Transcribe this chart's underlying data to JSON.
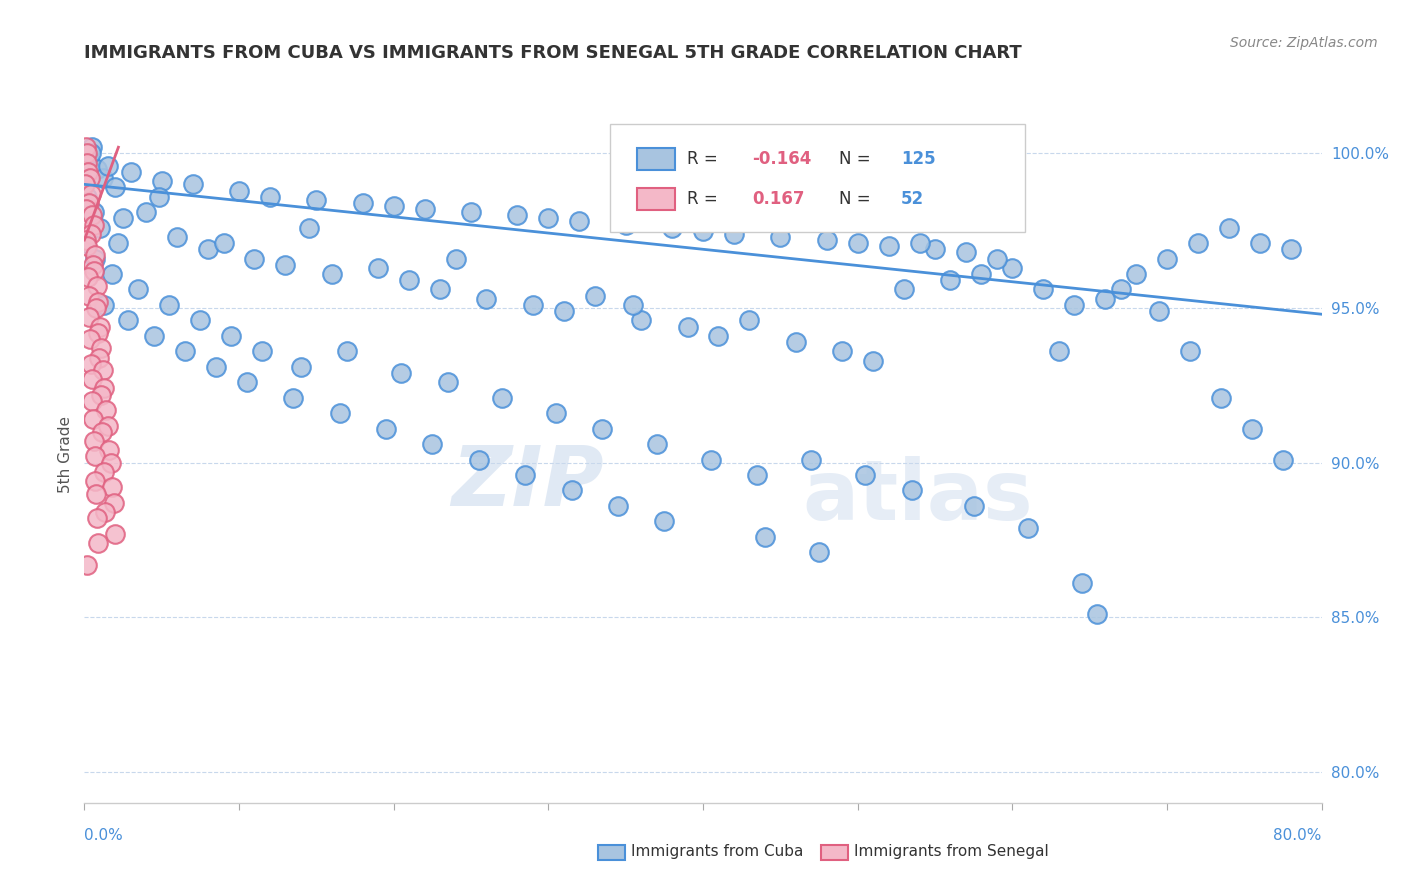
{
  "title": "IMMIGRANTS FROM CUBA VS IMMIGRANTS FROM SENEGAL 5TH GRADE CORRELATION CHART",
  "source_text": "Source: ZipAtlas.com",
  "ylabel": "5th Grade",
  "xlim": [
    0.0,
    80.0
  ],
  "ylim": [
    79.0,
    101.5
  ],
  "watermark_zip": "ZIP",
  "watermark_atlas": "atlas",
  "legend_cuba_r": "-0.164",
  "legend_cuba_n": "125",
  "legend_senegal_r": "0.167",
  "legend_senegal_n": "52",
  "blue_face_color": "#a8c4e0",
  "pink_face_color": "#f4b8c8",
  "blue_edge_color": "#4a90d9",
  "pink_edge_color": "#e06080",
  "blue_line_color": "#4a90d9",
  "pink_line_color": "#e06080",
  "axis_label_color": "#4a90d9",
  "legend_r_color": "#e06080",
  "legend_n_color": "#4a90d9",
  "grid_color": "#c8d8ec",
  "blue_trend": [
    0.0,
    80.0,
    99.0,
    94.8
  ],
  "pink_trend": [
    0.0,
    2.2,
    97.2,
    100.2
  ],
  "blue_scatter": [
    [
      0.5,
      100.2
    ],
    [
      0.3,
      99.8
    ],
    [
      0.8,
      99.5
    ],
    [
      1.2,
      99.2
    ],
    [
      2.0,
      98.9
    ],
    [
      0.4,
      100.0
    ],
    [
      1.5,
      99.6
    ],
    [
      3.0,
      99.4
    ],
    [
      5.0,
      99.1
    ],
    [
      7.0,
      99.0
    ],
    [
      10.0,
      98.8
    ],
    [
      12.0,
      98.6
    ],
    [
      15.0,
      98.5
    ],
    [
      18.0,
      98.4
    ],
    [
      20.0,
      98.3
    ],
    [
      22.0,
      98.2
    ],
    [
      25.0,
      98.1
    ],
    [
      28.0,
      98.0
    ],
    [
      30.0,
      97.9
    ],
    [
      32.0,
      97.8
    ],
    [
      35.0,
      97.7
    ],
    [
      38.0,
      97.6
    ],
    [
      40.0,
      97.5
    ],
    [
      42.0,
      97.4
    ],
    [
      45.0,
      97.3
    ],
    [
      48.0,
      97.2
    ],
    [
      50.0,
      97.1
    ],
    [
      52.0,
      97.0
    ],
    [
      55.0,
      96.9
    ],
    [
      57.0,
      96.8
    ],
    [
      0.2,
      98.6
    ],
    [
      0.6,
      98.1
    ],
    [
      1.0,
      97.6
    ],
    [
      2.5,
      97.9
    ],
    [
      4.0,
      98.1
    ],
    [
      6.0,
      97.3
    ],
    [
      8.0,
      96.9
    ],
    [
      9.0,
      97.1
    ],
    [
      11.0,
      96.6
    ],
    [
      13.0,
      96.4
    ],
    [
      16.0,
      96.1
    ],
    [
      19.0,
      96.3
    ],
    [
      21.0,
      95.9
    ],
    [
      23.0,
      95.6
    ],
    [
      26.0,
      95.3
    ],
    [
      29.0,
      95.1
    ],
    [
      31.0,
      94.9
    ],
    [
      33.0,
      95.4
    ],
    [
      36.0,
      94.6
    ],
    [
      39.0,
      94.4
    ],
    [
      41.0,
      94.1
    ],
    [
      43.0,
      94.6
    ],
    [
      46.0,
      93.9
    ],
    [
      49.0,
      93.6
    ],
    [
      51.0,
      93.3
    ],
    [
      53.0,
      95.6
    ],
    [
      56.0,
      95.9
    ],
    [
      58.0,
      96.1
    ],
    [
      60.0,
      96.3
    ],
    [
      62.0,
      95.6
    ],
    [
      64.0,
      95.1
    ],
    [
      66.0,
      95.3
    ],
    [
      68.0,
      96.1
    ],
    [
      70.0,
      96.6
    ],
    [
      72.0,
      97.1
    ],
    [
      74.0,
      97.6
    ],
    [
      76.0,
      97.1
    ],
    [
      78.0,
      96.9
    ],
    [
      0.1,
      97.1
    ],
    [
      0.7,
      96.6
    ],
    [
      1.8,
      96.1
    ],
    [
      3.5,
      95.6
    ],
    [
      5.5,
      95.1
    ],
    [
      7.5,
      94.6
    ],
    [
      9.5,
      94.1
    ],
    [
      11.5,
      93.6
    ],
    [
      14.0,
      93.1
    ],
    [
      17.0,
      93.6
    ],
    [
      20.5,
      92.9
    ],
    [
      23.5,
      92.6
    ],
    [
      27.0,
      92.1
    ],
    [
      30.5,
      91.6
    ],
    [
      33.5,
      91.1
    ],
    [
      37.0,
      90.6
    ],
    [
      40.5,
      90.1
    ],
    [
      43.5,
      89.6
    ],
    [
      47.0,
      90.1
    ],
    [
      50.5,
      89.6
    ],
    [
      53.5,
      89.1
    ],
    [
      57.5,
      88.6
    ],
    [
      61.0,
      87.9
    ],
    [
      1.3,
      95.1
    ],
    [
      2.8,
      94.6
    ],
    [
      4.5,
      94.1
    ],
    [
      6.5,
      93.6
    ],
    [
      8.5,
      93.1
    ],
    [
      10.5,
      92.6
    ],
    [
      13.5,
      92.1
    ],
    [
      16.5,
      91.6
    ],
    [
      19.5,
      91.1
    ],
    [
      22.5,
      90.6
    ],
    [
      25.5,
      90.1
    ],
    [
      28.5,
      89.6
    ],
    [
      31.5,
      89.1
    ],
    [
      34.5,
      88.6
    ],
    [
      37.5,
      88.1
    ],
    [
      44.0,
      87.6
    ],
    [
      47.5,
      87.1
    ],
    [
      64.5,
      86.1
    ],
    [
      67.0,
      95.6
    ],
    [
      69.5,
      94.9
    ],
    [
      71.5,
      93.6
    ],
    [
      73.5,
      92.1
    ],
    [
      75.5,
      91.1
    ],
    [
      77.5,
      90.1
    ],
    [
      65.5,
      85.1
    ],
    [
      63.0,
      93.6
    ],
    [
      59.0,
      96.6
    ],
    [
      54.0,
      97.1
    ],
    [
      35.5,
      95.1
    ],
    [
      24.0,
      96.6
    ],
    [
      14.5,
      97.6
    ],
    [
      4.8,
      98.6
    ],
    [
      2.2,
      97.1
    ]
  ],
  "pink_scatter": [
    [
      0.1,
      100.2
    ],
    [
      0.2,
      100.0
    ],
    [
      0.15,
      99.7
    ],
    [
      0.25,
      99.4
    ],
    [
      0.35,
      99.2
    ],
    [
      0.05,
      99.0
    ],
    [
      0.4,
      98.7
    ],
    [
      0.3,
      98.4
    ],
    [
      0.08,
      98.2
    ],
    [
      0.5,
      98.0
    ],
    [
      0.6,
      97.7
    ],
    [
      0.45,
      97.4
    ],
    [
      0.12,
      97.2
    ],
    [
      0.18,
      97.0
    ],
    [
      0.7,
      96.7
    ],
    [
      0.55,
      96.4
    ],
    [
      0.65,
      96.2
    ],
    [
      0.22,
      96.0
    ],
    [
      0.8,
      95.7
    ],
    [
      0.28,
      95.4
    ],
    [
      0.9,
      95.2
    ],
    [
      0.75,
      95.0
    ],
    [
      0.32,
      94.7
    ],
    [
      1.0,
      94.4
    ],
    [
      0.85,
      94.2
    ],
    [
      0.38,
      94.0
    ],
    [
      1.1,
      93.7
    ],
    [
      0.95,
      93.4
    ],
    [
      0.42,
      93.2
    ],
    [
      1.2,
      93.0
    ],
    [
      0.48,
      92.7
    ],
    [
      1.3,
      92.4
    ],
    [
      1.05,
      92.2
    ],
    [
      0.52,
      92.0
    ],
    [
      1.4,
      91.7
    ],
    [
      0.58,
      91.4
    ],
    [
      1.5,
      91.2
    ],
    [
      1.15,
      91.0
    ],
    [
      0.62,
      90.7
    ],
    [
      1.6,
      90.4
    ],
    [
      0.68,
      90.2
    ],
    [
      1.7,
      90.0
    ],
    [
      1.25,
      89.7
    ],
    [
      0.72,
      89.4
    ],
    [
      1.8,
      89.2
    ],
    [
      0.78,
      89.0
    ],
    [
      1.9,
      88.7
    ],
    [
      1.35,
      88.4
    ],
    [
      0.82,
      88.2
    ],
    [
      2.0,
      87.7
    ],
    [
      0.88,
      87.4
    ],
    [
      0.18,
      86.7
    ]
  ]
}
